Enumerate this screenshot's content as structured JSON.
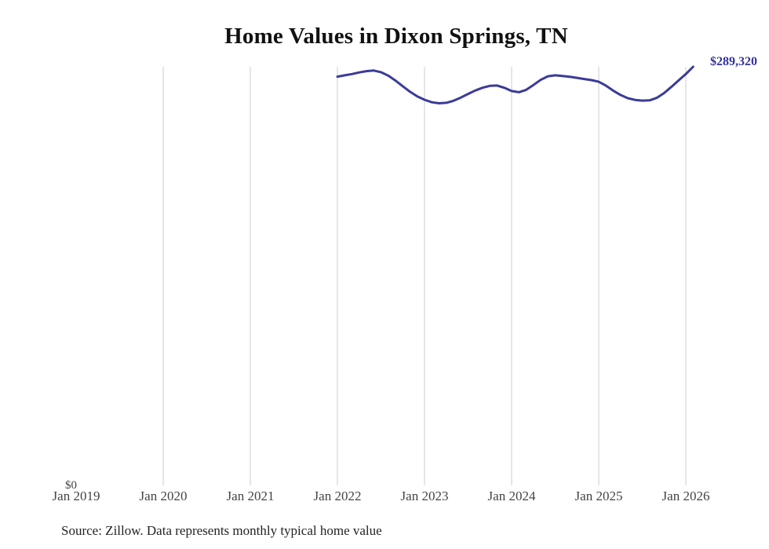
{
  "chart_data": {
    "type": "line",
    "title": "Home Values in Dixon Springs, TN",
    "y_zero_label": "$0",
    "end_label": "$289,320",
    "x_tick_labels": [
      "Jan 2019",
      "Jan 2020",
      "Jan 2021",
      "Jan 2022",
      "Jan 2023",
      "Jan 2024",
      "Jan 2025",
      "Jan 2026"
    ],
    "x": [
      "2022-01",
      "2022-02",
      "2022-03",
      "2022-04",
      "2022-05",
      "2022-06",
      "2022-07",
      "2022-08",
      "2022-09",
      "2022-10",
      "2022-11",
      "2022-12",
      "2023-01",
      "2023-02",
      "2023-03",
      "2023-04",
      "2023-05",
      "2023-06",
      "2023-07",
      "2023-08",
      "2023-09",
      "2023-10",
      "2023-11",
      "2023-12",
      "2024-01",
      "2024-02",
      "2024-03",
      "2024-04",
      "2024-05",
      "2024-06",
      "2024-07",
      "2024-08",
      "2024-09",
      "2024-10",
      "2024-11",
      "2024-12",
      "2025-01",
      "2025-02",
      "2025-03",
      "2025-04",
      "2025-05",
      "2025-06",
      "2025-07",
      "2025-08",
      "2025-09",
      "2025-10",
      "2025-11",
      "2025-12",
      "2026-01",
      "2026-02"
    ],
    "values": [
      282500,
      283400,
      284300,
      285400,
      286300,
      286700,
      285600,
      283200,
      279800,
      275900,
      272100,
      268900,
      266600,
      264900,
      264200,
      264500,
      265900,
      268100,
      270600,
      273000,
      274900,
      276200,
      276400,
      274800,
      272600,
      271800,
      273400,
      276800,
      280300,
      282800,
      283400,
      283000,
      282400,
      281700,
      280900,
      280100,
      279000,
      276300,
      272900,
      269900,
      267700,
      266500,
      266000,
      266200,
      267900,
      271200,
      275400,
      279900,
      284300,
      289320
    ],
    "ylim": [
      0,
      289320
    ],
    "grid": "vertical-yearly",
    "gridline_years": [
      2020,
      2021,
      2022,
      2023,
      2024,
      2025,
      2026
    ],
    "line_color": "#3b3b99",
    "label_color": "#3333a0",
    "grid_color": "#cccccc"
  },
  "source_note": "Source: Zillow. Data represents monthly typical home value"
}
